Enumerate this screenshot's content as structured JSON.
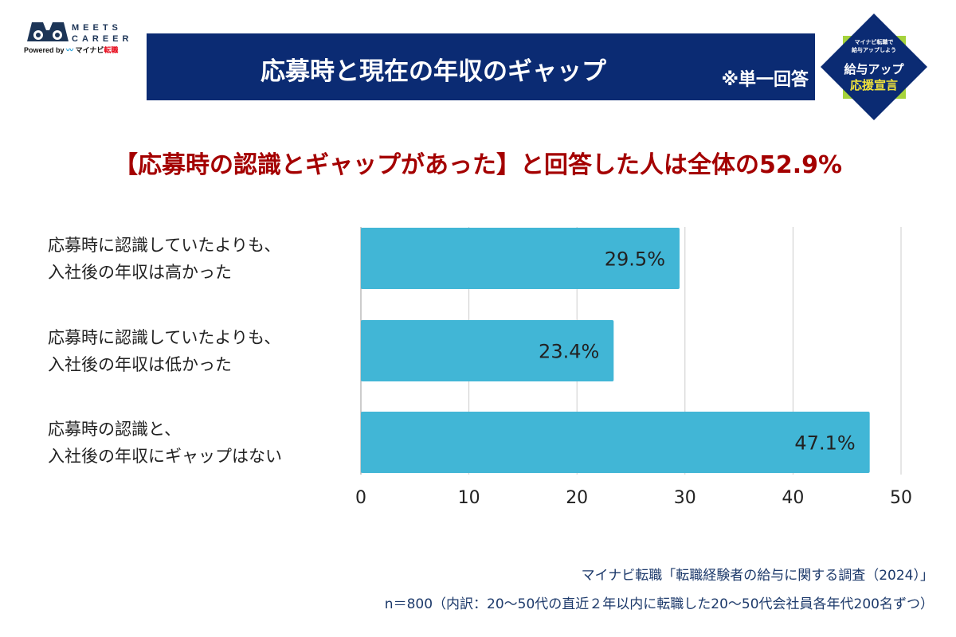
{
  "logo": {
    "brand": "MEETS CAREER",
    "powered_by": "Powered by",
    "partner": "マイナビ",
    "partner_suffix": "転職"
  },
  "header": {
    "title": "応募時と現在の年収のギャップ",
    "note": "※単一回答"
  },
  "badge": {
    "line1": "マイナビ転職で",
    "line2": "給与アップしよう",
    "line3": "給与アップ",
    "line4": "応援宣言"
  },
  "headline": "【応募時の認識とギャップがあった】と回答した人は全体の52.9%",
  "colors": {
    "bar": "#41b6d6",
    "title_bg": "#0b2b73",
    "headline": "#a40000"
  },
  "chart_data": {
    "type": "bar",
    "orientation": "horizontal",
    "categories": [
      [
        "応募時に認識していたよりも、",
        "入社後の年収は高かった"
      ],
      [
        "応募時に認識していたよりも、",
        "入社後の年収は低かった"
      ],
      [
        "応募時の認識と、",
        "入社後の年収にギャップはない"
      ]
    ],
    "values": [
      29.5,
      23.4,
      47.1
    ],
    "data_labels": [
      "29.5%",
      "23.4%",
      "47.1%"
    ],
    "xlim": [
      0,
      50
    ],
    "xticks": [
      0,
      10,
      20,
      30,
      40,
      50
    ],
    "grid": true
  },
  "footer": {
    "source": "マイナビ転職「転職経験者の給与に関する調査（2024）」",
    "sample": "n＝800（内訳：20〜50代の直近２年以内に転職した20〜50代会社員各年代200名ずつ）"
  }
}
